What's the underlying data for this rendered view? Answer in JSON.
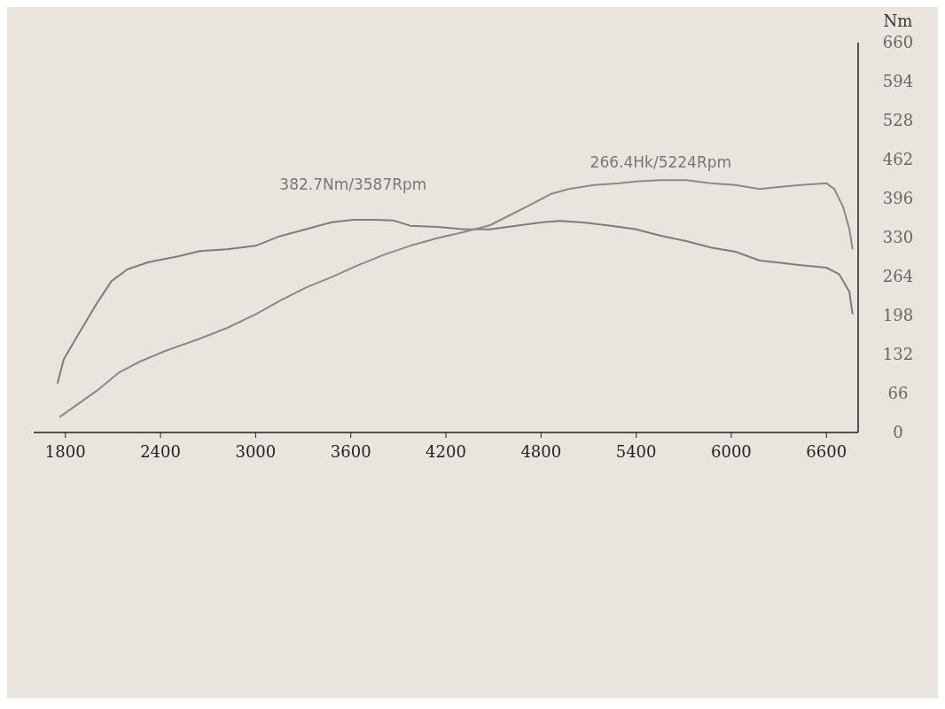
{
  "chart_data": {
    "type": "line",
    "ylabel": "Nm",
    "xlim": [
      1600,
      6800
    ],
    "xticks": [
      1800,
      2400,
      3000,
      3600,
      4200,
      4800,
      5400,
      6000,
      6600
    ],
    "ylim": [
      0,
      660
    ],
    "yticks": [
      0,
      66,
      132,
      198,
      264,
      330,
      396,
      462,
      528,
      594,
      660
    ],
    "grid": false,
    "marker": "none",
    "line_style": "solid",
    "annotations": [
      "382.7Nm/3587Rpm",
      "266.4Hk/5224Rpm"
    ],
    "series": [
      {
        "color": "#7d7d7d",
        "x": [
          1750,
          1790,
          1890,
          1990,
          2090,
          2190,
          2320,
          2510,
          2650,
          2820,
          3000,
          3150,
          3315,
          3480,
          3615,
          3745,
          3865,
          3975,
          4145,
          4310,
          4480,
          4645,
          4810,
          4920,
          5080,
          5240,
          5400,
          5555,
          5715,
          5870,
          6025,
          6180,
          6285,
          6440,
          6600,
          6680,
          6745,
          6765
        ],
        "values": [
          83,
          124,
          170,
          215,
          256,
          276,
          288,
          298,
          307,
          310,
          316,
          332,
          344,
          356,
          360,
          360,
          359,
          350,
          348,
          344,
          344,
          350,
          356,
          358,
          355,
          350,
          344,
          333,
          324,
          313,
          306,
          291,
          288,
          283,
          279,
          268,
          238,
          200
        ]
      },
      {
        "color": "#8a8a8a",
        "x": [
          1763,
          1842,
          2000,
          2135,
          2270,
          2430,
          2650,
          2820,
          3000,
          3153,
          3315,
          3480,
          3645,
          3810,
          3975,
          4145,
          4310,
          4480,
          4590,
          4730,
          4865,
          4975,
          5135,
          5295,
          5400,
          5555,
          5715,
          5870,
          6025,
          6180,
          6285,
          6440,
          6600,
          6650,
          6705,
          6745,
          6765
        ],
        "values": [
          26,
          41,
          71,
          101,
          120,
          138,
          159,
          177,
          200,
          223,
          245,
          263,
          283,
          301,
          316,
          329,
          339,
          351,
          366,
          385,
          404,
          412,
          419,
          422,
          425,
          427,
          427,
          422,
          419,
          412,
          415,
          419,
          422,
          412,
          382,
          344,
          310
        ]
      }
    ]
  }
}
